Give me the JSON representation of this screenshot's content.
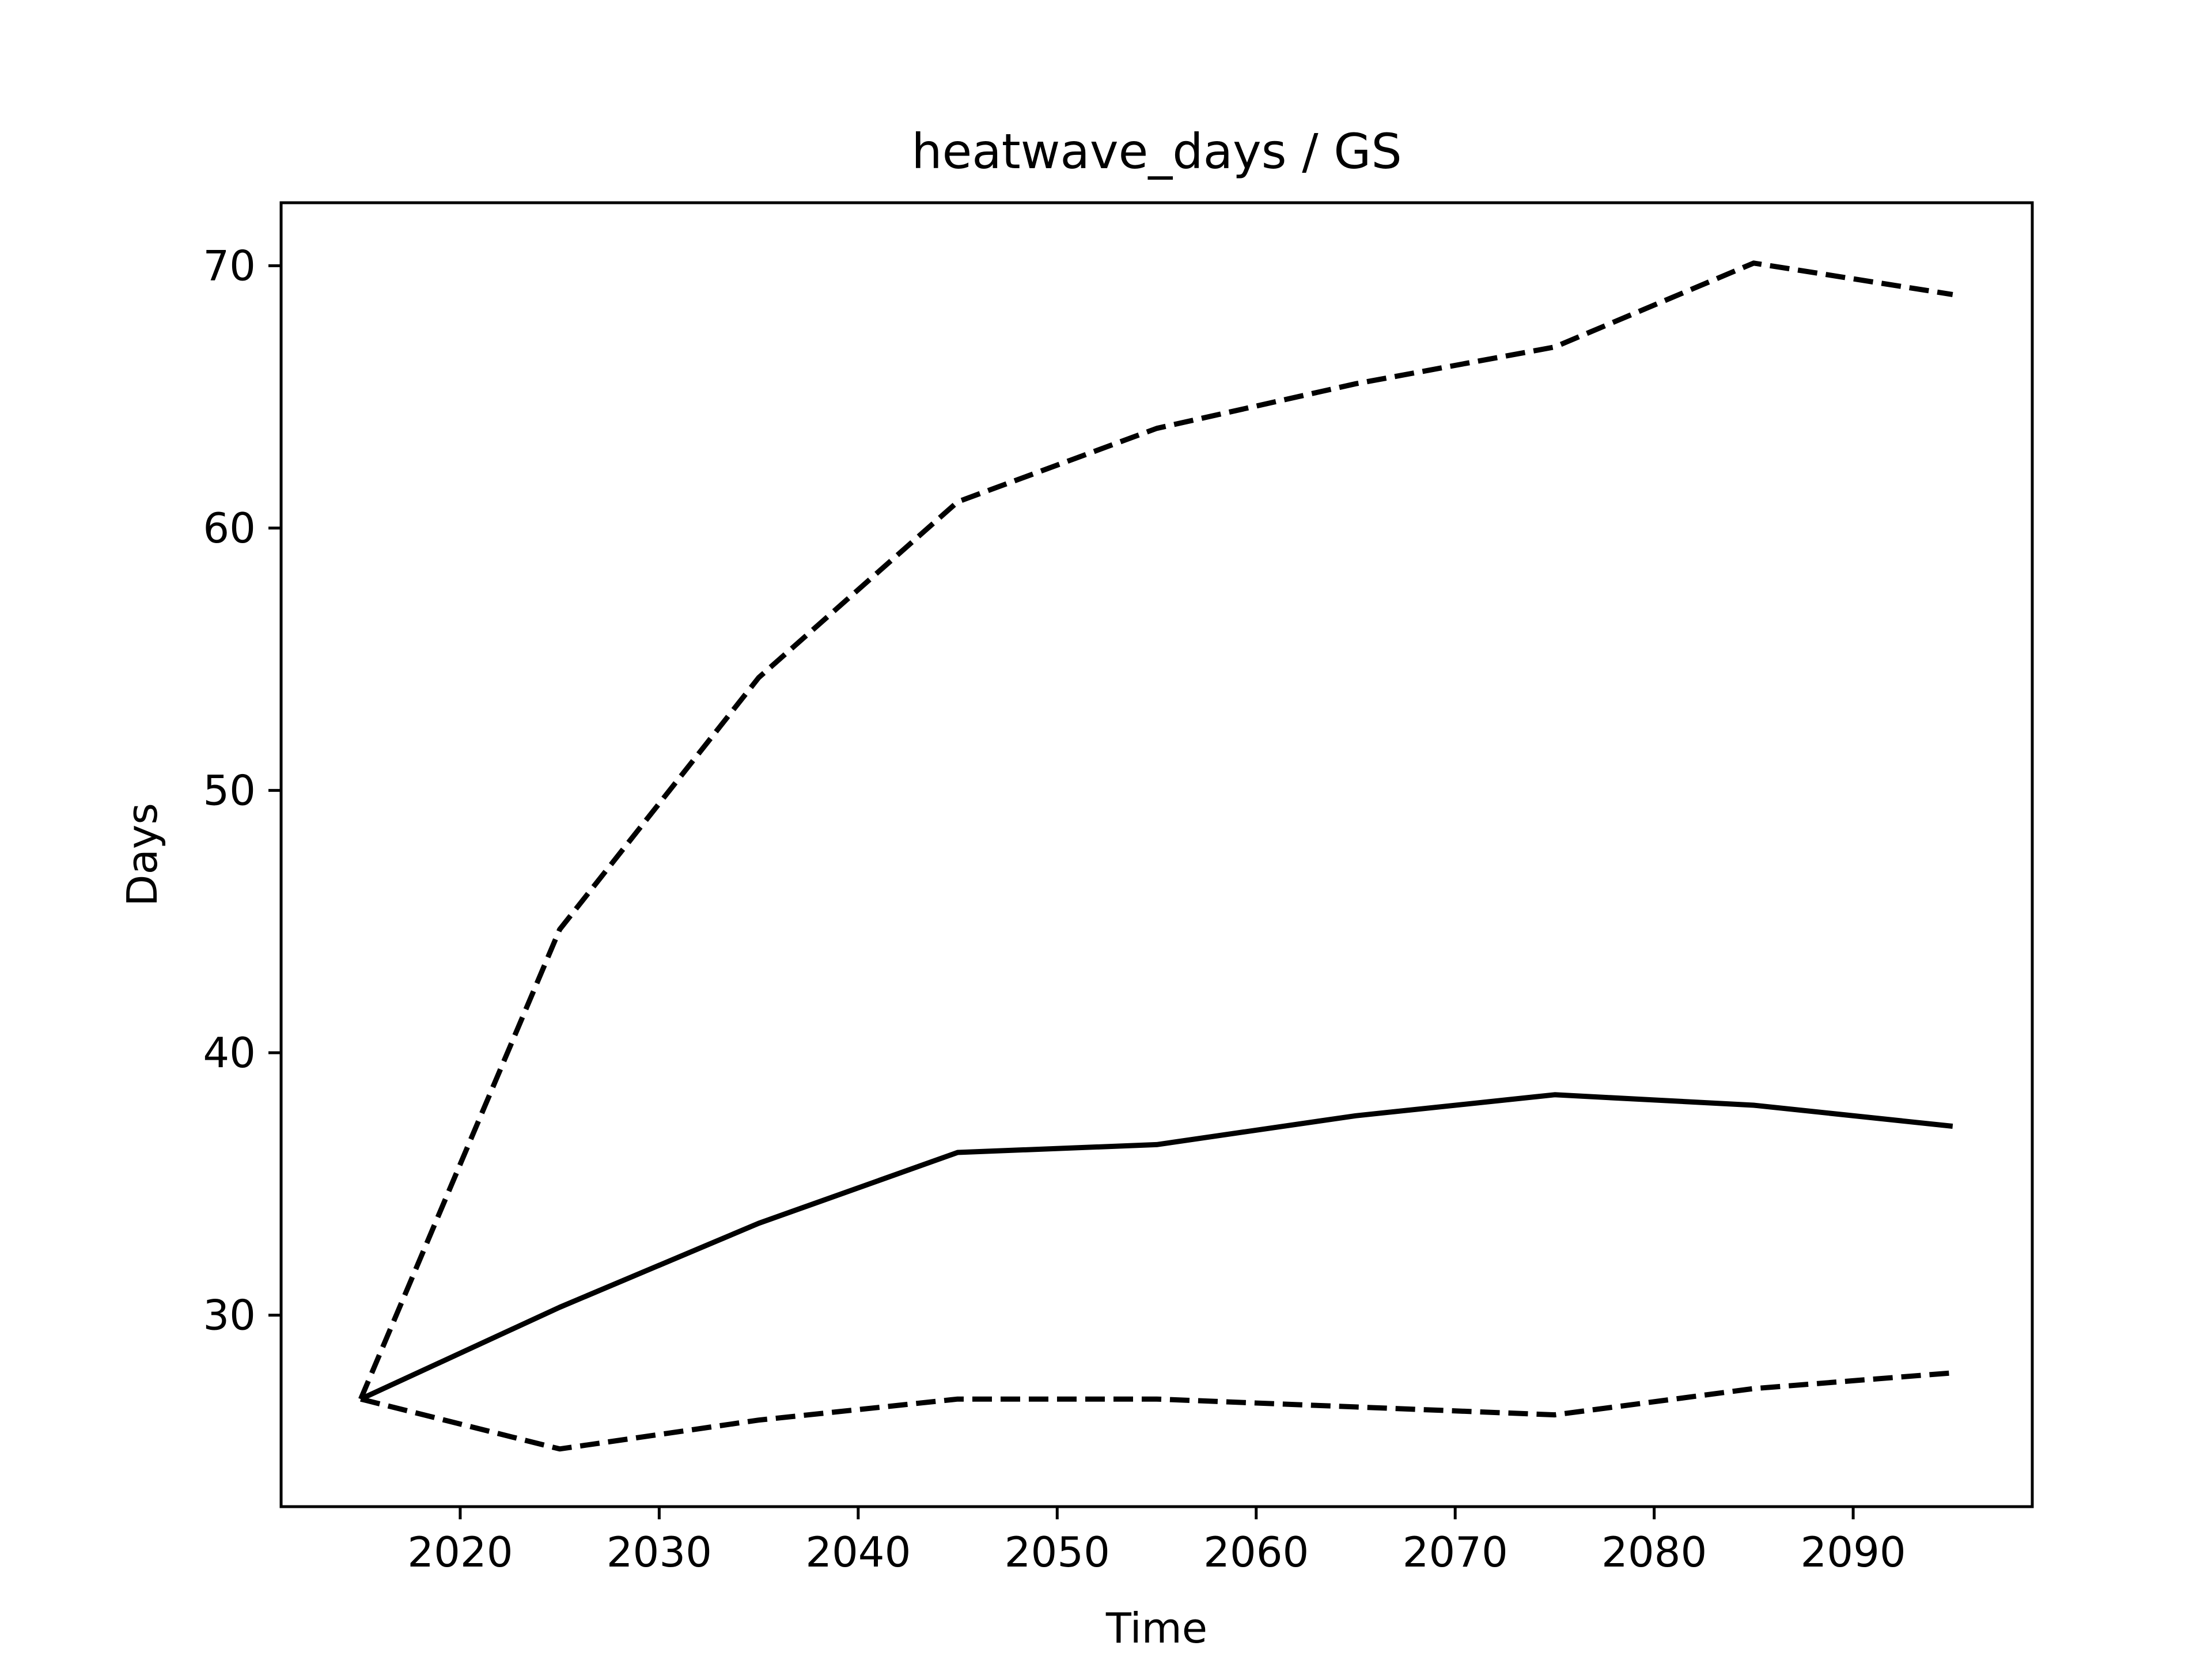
{
  "chart_data": {
    "type": "line",
    "title": "heatwave_days / GS",
    "xlabel": "Time",
    "ylabel": "Days",
    "xlim": [
      2011,
      2099
    ],
    "ylim": [
      22.7,
      72.4
    ],
    "xticks": [
      2020,
      2030,
      2040,
      2050,
      2060,
      2070,
      2080,
      2090
    ],
    "yticks": [
      30,
      40,
      50,
      60,
      70
    ],
    "grid": false,
    "legend": "none",
    "x": [
      2015,
      2025,
      2035,
      2045,
      2055,
      2065,
      2075,
      2085,
      2095
    ],
    "series": [
      {
        "style": "dashed",
        "color": "#000000",
        "values": [
          26.8,
          44.7,
          54.3,
          61.0,
          63.8,
          65.5,
          66.9,
          70.1,
          68.9
        ]
      },
      {
        "style": "solid",
        "color": "#000000",
        "values": [
          26.8,
          30.3,
          33.5,
          36.2,
          36.5,
          37.6,
          38.4,
          38.0,
          37.2
        ]
      },
      {
        "style": "dashed",
        "color": "#000000",
        "values": [
          26.8,
          24.9,
          26.0,
          26.8,
          26.8,
          26.5,
          26.2,
          27.2,
          27.8
        ]
      }
    ]
  }
}
